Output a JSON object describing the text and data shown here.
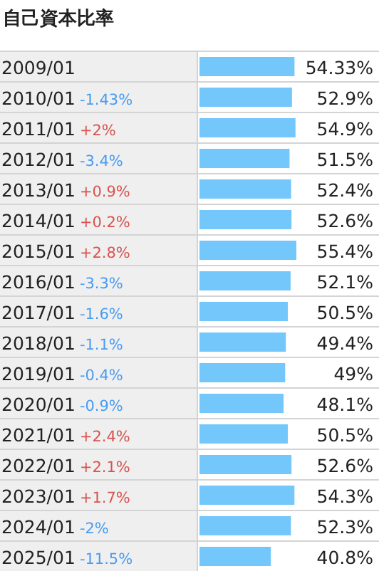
{
  "chart_data": {
    "type": "bar",
    "orientation": "horizontal",
    "title": "自己資本比率",
    "categories": [
      "2009/01",
      "2010/01",
      "2011/01",
      "2012/01",
      "2013/01",
      "2014/01",
      "2015/01",
      "2016/01",
      "2017/01",
      "2018/01",
      "2019/01",
      "2020/01",
      "2021/01",
      "2022/01",
      "2023/01",
      "2024/01",
      "2025/01"
    ],
    "values": [
      54.33,
      52.9,
      54.9,
      51.5,
      52.4,
      52.6,
      55.4,
      52.1,
      50.5,
      49.4,
      49,
      48.1,
      50.5,
      52.6,
      54.3,
      52.3,
      40.8
    ],
    "value_labels": [
      "54.33%",
      "52.9%",
      "54.9%",
      "51.5%",
      "52.4%",
      "52.6%",
      "55.4%",
      "52.1%",
      "50.5%",
      "49.4%",
      "49%",
      "48.1%",
      "50.5%",
      "52.6%",
      "54.3%",
      "52.3%",
      "40.8%"
    ],
    "color": "#74c7fb",
    "annotations": [
      "-1.43%",
      "+2%",
      "-3.4%",
      "+0.9%",
      "+0.2%",
      "+2.8%",
      "-3.3%",
      "-1.6%",
      "-1.1%",
      "-0.4%",
      "-0.9%",
      "+2.4%",
      "+2.1%",
      "+1.7%",
      "-2%",
      "-11.5%"
    ]
  }
}
